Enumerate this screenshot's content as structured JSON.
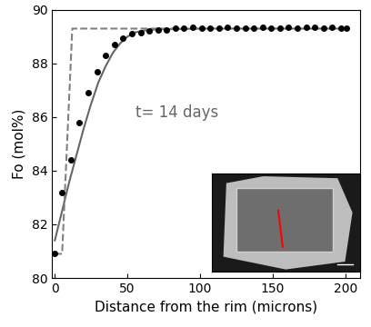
{
  "chart_data": {
    "type": "line",
    "x_label": "Distance from the rim (microns)",
    "y_label": "Fo (mol%)",
    "annotation": "t= 14 days",
    "xlim": [
      -2,
      210
    ],
    "ylim": [
      80,
      90
    ],
    "xticks": [
      0,
      50,
      100,
      150,
      200
    ],
    "yticks": [
      80,
      82,
      84,
      86,
      88,
      90
    ],
    "series": [
      {
        "type": "scatter",
        "color": "#000000",
        "marker": "o",
        "x": [
          0,
          5,
          11,
          17,
          23,
          29,
          35,
          41,
          47,
          53,
          59,
          65,
          71,
          77,
          83,
          89,
          95,
          101,
          107,
          113,
          119,
          125,
          131,
          137,
          143,
          149,
          155,
          161,
          167,
          173,
          179,
          185,
          191,
          197,
          201
        ],
        "values": [
          80.9,
          83.2,
          84.4,
          85.8,
          86.9,
          87.7,
          88.3,
          88.7,
          88.95,
          89.1,
          89.15,
          89.2,
          89.25,
          89.25,
          89.3,
          89.3,
          89.35,
          89.3,
          89.3,
          89.3,
          89.35,
          89.3,
          89.3,
          89.3,
          89.35,
          89.3,
          89.3,
          89.35,
          89.3,
          89.35,
          89.35,
          89.3,
          89.35,
          89.3,
          89.3
        ]
      },
      {
        "type": "line",
        "color": "#666666",
        "line_style": "solid",
        "x": [
          0,
          5,
          10,
          15,
          20,
          25,
          30,
          35,
          40,
          45,
          50,
          55,
          60,
          70,
          80,
          100,
          150,
          200
        ],
        "values": [
          81.4,
          82.5,
          83.6,
          84.6,
          85.6,
          86.5,
          87.3,
          87.9,
          88.4,
          88.75,
          89.0,
          89.15,
          89.22,
          89.27,
          89.28,
          89.3,
          89.3,
          89.3
        ]
      },
      {
        "type": "line",
        "color": "#808080",
        "line_style": "dashed",
        "x": [
          0,
          5,
          12,
          100
        ],
        "values": [
          80.9,
          80.9,
          89.3,
          89.3
        ]
      }
    ]
  }
}
